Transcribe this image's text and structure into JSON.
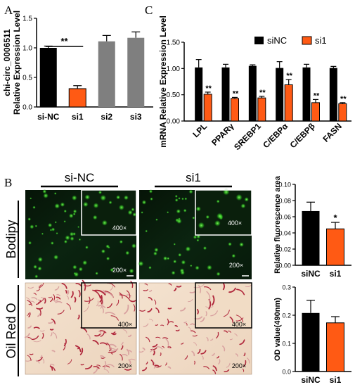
{
  "panel_letters": {
    "a": "A",
    "b": "B",
    "c": "C"
  },
  "micro": {
    "col_headers": [
      "si-NC",
      "si1"
    ],
    "row_labels": [
      "Bodipy",
      "Oil Red O"
    ],
    "inset_mag": "400×",
    "main_mag": "200×"
  },
  "chart_data": [
    {
      "id": "A",
      "type": "bar",
      "categories": [
        "si-NC",
        "si1",
        "si2",
        "si3"
      ],
      "values": [
        1.0,
        0.31,
        1.11,
        1.17
      ],
      "errors": [
        0.03,
        0.05,
        0.1,
        0.1
      ],
      "colors": [
        "#000000",
        "#ff5a14",
        "#7f7f7f",
        "#7f7f7f"
      ],
      "ylabel": "chi-circ_0006511\nRelative Expression Level",
      "ylim": [
        0,
        1.5
      ],
      "yticks": [
        "0.0",
        "0.5",
        "1.0",
        "1.5"
      ],
      "significance": {
        "label": "**",
        "between": [
          "si-NC",
          "si1"
        ]
      }
    },
    {
      "id": "C",
      "type": "bar",
      "categories": [
        "LPL",
        "PPARγ",
        "SREBP1",
        "C/EBPα",
        "C/EBPβ",
        "FASN"
      ],
      "series": [
        {
          "name": "siNC",
          "color": "#000000",
          "values": [
            1.02,
            1.02,
            1.05,
            1.01,
            1.02,
            1.01
          ],
          "errors": [
            0.15,
            0.06,
            0.02,
            0.12,
            0.06,
            0.03
          ]
        },
        {
          "name": "si1",
          "color": "#ff5a14",
          "values": [
            0.51,
            0.43,
            0.44,
            0.69,
            0.35,
            0.33
          ],
          "errors": [
            0.04,
            0.02,
            0.03,
            0.1,
            0.06,
            0.02
          ]
        }
      ],
      "significance": [
        "**",
        "**",
        "**",
        "**",
        "**",
        "**"
      ],
      "ylabel": "mRNA Relative Expression Level",
      "ylim": [
        0,
        1.5
      ],
      "yticks": [
        "0.00",
        "0.50",
        "1.00",
        "1.50"
      ],
      "legend": "top-right"
    },
    {
      "id": "B-top",
      "type": "bar",
      "categories": [
        "siNC",
        "si1"
      ],
      "values": [
        0.067,
        0.045
      ],
      "errors": [
        0.011,
        0.008
      ],
      "colors": [
        "#000000",
        "#ff5a14"
      ],
      "ylabel": "Relative fluorescence area",
      "ylim": [
        0,
        0.1
      ],
      "yticks": [
        "0.00",
        "0.02",
        "0.04",
        "0.06",
        "0.08",
        "0.10"
      ],
      "significance": {
        "label": "*",
        "on": "si1"
      }
    },
    {
      "id": "B-bottom",
      "type": "bar",
      "categories": [
        "siNC",
        "si1"
      ],
      "values": [
        0.208,
        0.173
      ],
      "errors": [
        0.045,
        0.022
      ],
      "colors": [
        "#000000",
        "#ff5a14"
      ],
      "ylabel": "OD value(490nm)",
      "ylim": [
        0,
        0.3
      ],
      "yticks": [
        "0.0",
        "0.1",
        "0.2",
        "0.3"
      ]
    }
  ]
}
